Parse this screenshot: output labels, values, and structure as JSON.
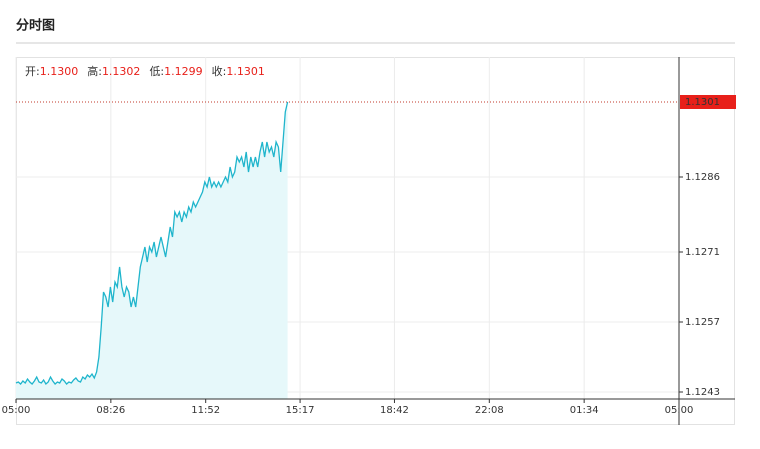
{
  "title": "分时图",
  "chart_data": {
    "type": "line",
    "ohlc": [
      {
        "label": "开:",
        "value": "1.1300"
      },
      {
        "label": "高:",
        "value": "1.1302"
      },
      {
        "label": "低:",
        "value": "1.1299"
      },
      {
        "label": "收:",
        "value": "1.1301"
      }
    ],
    "last_price": {
      "value": 1.1301,
      "label": "1.1301"
    },
    "xlim": [
      0,
      1440
    ],
    "xticks": [
      {
        "value": 0,
        "label": "05:00"
      },
      {
        "value": 206,
        "label": "08:26"
      },
      {
        "value": 412,
        "label": "11:52"
      },
      {
        "value": 617,
        "label": "15:17"
      },
      {
        "value": 822,
        "label": "18:42"
      },
      {
        "value": 1028,
        "label": "22:08"
      },
      {
        "value": 1234,
        "label": "01:34"
      },
      {
        "value": 1440,
        "label": "05:00"
      }
    ],
    "ylim": [
      1.12416,
      1.131
    ],
    "yticks": [
      1.1243,
      1.1257,
      1.1271,
      1.1286
    ],
    "grid": true,
    "color": "#1fb5cc",
    "fill": "#e6f8fa",
    "x": [
      0,
      5,
      10,
      15,
      20,
      25,
      30,
      35,
      40,
      45,
      50,
      55,
      60,
      65,
      70,
      75,
      80,
      85,
      90,
      95,
      100,
      105,
      110,
      115,
      120,
      125,
      130,
      135,
      140,
      145,
      150,
      155,
      160,
      165,
      170,
      175,
      180,
      185,
      190,
      195,
      200,
      205,
      210,
      215,
      220,
      225,
      230,
      235,
      240,
      245,
      250,
      255,
      260,
      265,
      270,
      275,
      280,
      285,
      290,
      295,
      300,
      305,
      310,
      315,
      320,
      325,
      330,
      335,
      340,
      345,
      350,
      355,
      360,
      365,
      370,
      375,
      380,
      385,
      390,
      395,
      400,
      405,
      410,
      415,
      420,
      425,
      430,
      435,
      440,
      445,
      450,
      455,
      460,
      465,
      470,
      475,
      480,
      485,
      490,
      495,
      500,
      505,
      510,
      515,
      520,
      525,
      530,
      535,
      540,
      545,
      550,
      555,
      560,
      565,
      570,
      575,
      580,
      585,
      590
    ],
    "values": [
      1.12448,
      1.1245,
      1.12446,
      1.12452,
      1.12448,
      1.12456,
      1.1245,
      1.12446,
      1.12452,
      1.1246,
      1.1245,
      1.12448,
      1.12454,
      1.12446,
      1.1245,
      1.1246,
      1.12452,
      1.12446,
      1.1245,
      1.12448,
      1.12456,
      1.12452,
      1.12446,
      1.1245,
      1.12448,
      1.12454,
      1.12458,
      1.12452,
      1.1245,
      1.1246,
      1.12456,
      1.12464,
      1.1246,
      1.12466,
      1.12458,
      1.1247,
      1.125,
      1.1256,
      1.1263,
      1.1262,
      1.126,
      1.1264,
      1.1261,
      1.1265,
      1.1264,
      1.1268,
      1.1264,
      1.1262,
      1.1264,
      1.1263,
      1.126,
      1.1262,
      1.126,
      1.1264,
      1.1268,
      1.127,
      1.1272,
      1.1269,
      1.1272,
      1.1271,
      1.1273,
      1.127,
      1.1272,
      1.1274,
      1.1272,
      1.127,
      1.1273,
      1.1276,
      1.1274,
      1.1279,
      1.1278,
      1.1279,
      1.1277,
      1.1279,
      1.1278,
      1.128,
      1.1279,
      1.1281,
      1.128,
      1.1281,
      1.1282,
      1.1283,
      1.1285,
      1.1284,
      1.1286,
      1.1284,
      1.1285,
      1.1284,
      1.1285,
      1.1284,
      1.1285,
      1.1286,
      1.1285,
      1.1288,
      1.1286,
      1.1287,
      1.129,
      1.1289,
      1.129,
      1.1288,
      1.1291,
      1.1287,
      1.129,
      1.1288,
      1.129,
      1.1288,
      1.1291,
      1.1293,
      1.129,
      1.1293,
      1.1291,
      1.1292,
      1.129,
      1.1293,
      1.1292,
      1.1287,
      1.1293,
      1.1299,
      1.1301
    ]
  }
}
